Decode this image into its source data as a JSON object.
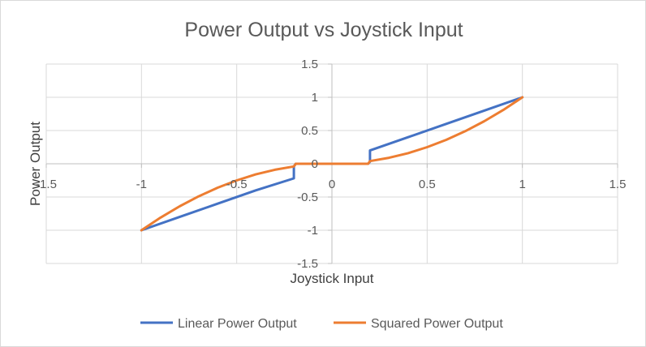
{
  "chart_data": {
    "type": "line",
    "title": "Power Output vs Joystick Input",
    "xlabel": "Joystick Input",
    "ylabel": "Power Output",
    "xlim": [
      -1.5,
      1.5
    ],
    "ylim": [
      -1.5,
      1.5
    ],
    "x_ticks": [
      "-1.5",
      "-1",
      "-0.5",
      "0",
      "0.5",
      "1",
      "1.5"
    ],
    "y_ticks": [
      "1.5",
      "1",
      "0.5",
      "0",
      "-0.5",
      "-1",
      "-1.5"
    ],
    "grid": true,
    "legend_position": "bottom",
    "series": [
      {
        "name": "Linear Power Output",
        "color": "#4472c4",
        "x": [
          -1,
          -0.8,
          -0.6,
          -0.4,
          -0.2,
          -0.2,
          -0.19,
          0.19,
          0.2,
          0.2,
          0.4,
          0.6,
          0.8,
          1
        ],
        "y": [
          -1,
          -0.8,
          -0.6,
          -0.4,
          -0.22,
          -0.04,
          0,
          0,
          0.03,
          0.2,
          0.4,
          0.6,
          0.8,
          1
        ]
      },
      {
        "name": "Squared Power Output",
        "color": "#ed7d31",
        "x": [
          -1,
          -0.9,
          -0.8,
          -0.7,
          -0.6,
          -0.5,
          -0.4,
          -0.3,
          -0.2,
          -0.19,
          0.19,
          0.2,
          0.3,
          0.4,
          0.5,
          0.6,
          0.7,
          0.8,
          0.9,
          1
        ],
        "y": [
          -1,
          -0.81,
          -0.64,
          -0.49,
          -0.36,
          -0.25,
          -0.16,
          -0.09,
          -0.04,
          0,
          0,
          0.04,
          0.09,
          0.16,
          0.25,
          0.36,
          0.49,
          0.64,
          0.81,
          1
        ]
      }
    ]
  }
}
